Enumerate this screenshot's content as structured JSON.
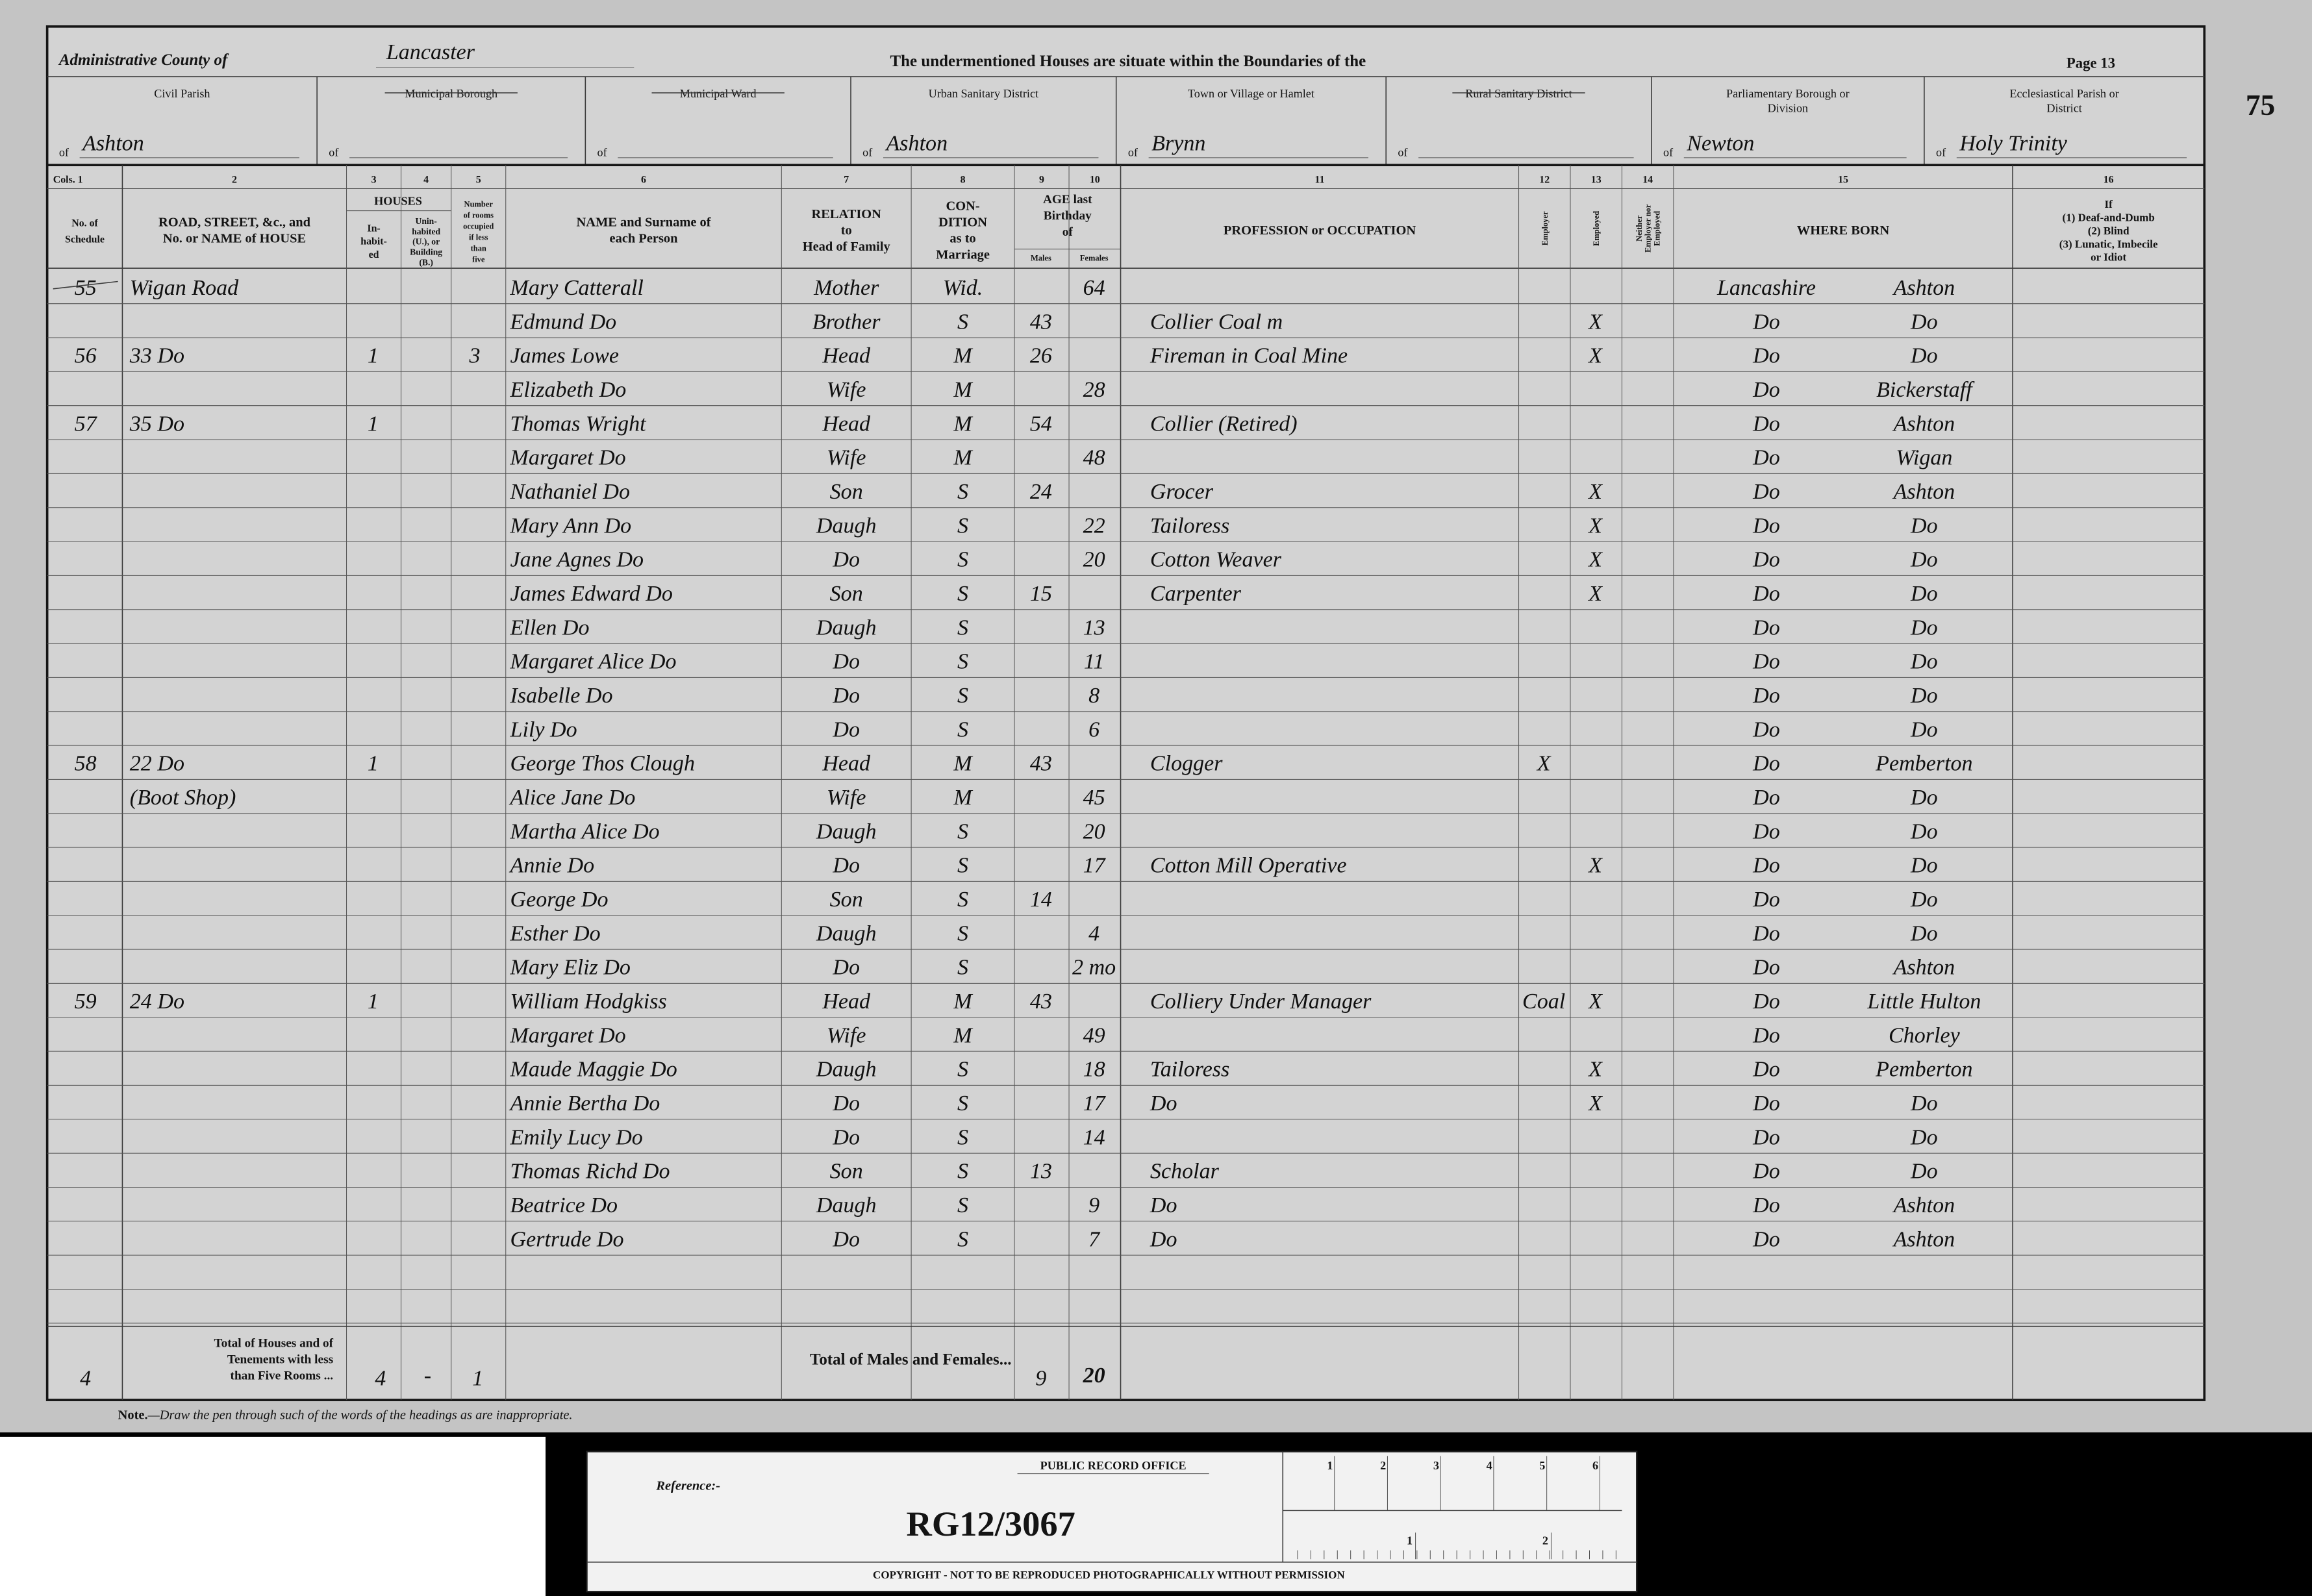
{
  "header": {
    "county_label": "Administrative County of",
    "county": "Lancaster",
    "title": "The undermentioned Houses are situate within the Boundaries of the",
    "page": "Page 13",
    "folio": "75",
    "district_prefix": "of",
    "districts": [
      {
        "label": [
          "Civil Parish"
        ],
        "value": "Ashton"
      },
      {
        "label": [
          "Municipal Borough"
        ]
      },
      {
        "label": [
          "Municipal Ward"
        ]
      },
      {
        "label": [
          "Urban Sanitary District"
        ],
        "value": "Ashton"
      },
      {
        "label": [
          "Town or Village or Hamlet"
        ],
        "value": "Brynn"
      },
      {
        "label": [
          "Rural Sanitary District"
        ]
      },
      {
        "label": [
          "Parliamentary Borough or",
          "Division"
        ],
        "value": "Newton"
      },
      {
        "label": [
          "Ecclesiastical Parish or",
          "District"
        ],
        "value": "Holy Trinity"
      }
    ]
  },
  "table": {
    "houses_heading": "HOUSES",
    "age_heading": [
      "AGE last",
      "Birthday",
      "of"
    ],
    "age_subheadings": [
      "Males",
      "Females"
    ],
    "columns": [
      {
        "number": "Cols. 1",
        "heading": [
          "No. of",
          "Schedule"
        ]
      },
      {
        "number": "2",
        "heading": [
          "ROAD, STREET, &c., and",
          "No. or NAME of HOUSE"
        ]
      },
      {
        "number": "3",
        "heading": [
          "In-",
          "habit-",
          "ed"
        ]
      },
      {
        "number": "4",
        "heading": [
          "Unin-",
          "habited",
          "(U.), or",
          "Building",
          "(B.)"
        ]
      },
      {
        "number": "5",
        "heading": [
          "Number",
          "of rooms",
          "occupied",
          "if less",
          "than",
          "five"
        ]
      },
      {
        "number": "6",
        "heading": [
          "NAME and Surname of",
          "each Person"
        ]
      },
      {
        "number": "7",
        "heading": [
          "RELATION",
          "to",
          "Head of Family"
        ]
      },
      {
        "number": "8",
        "heading": [
          "CON-",
          "DITION",
          "as to",
          "Marriage"
        ]
      },
      {
        "number": "9"
      },
      {
        "number": "10"
      },
      {
        "number": "11",
        "heading": [
          "PROFESSION or OCCUPATION"
        ]
      },
      {
        "number": "12",
        "heading": [
          "Employer"
        ]
      },
      {
        "number": "13",
        "heading": [
          "Employed"
        ]
      },
      {
        "number": "14",
        "heading": [
          "Neither",
          "Employer nor",
          "Employed"
        ]
      },
      {
        "number": "15",
        "heading": [
          "WHERE BORN"
        ]
      },
      {
        "number": "16",
        "heading": [
          "If",
          "(1) Deaf-and-Dumb",
          "(2) Blind",
          "(3) Lunatic, Imbecile",
          "or Idiot"
        ]
      }
    ],
    "rows": [
      {
        "schedule": "55",
        "road": "Wigan Road",
        "name": "Mary Catterall",
        "relation": "Mother",
        "condition": "Wid.",
        "age_female": "64",
        "born_county": "Lancashire",
        "born_parish": "Ashton"
      },
      {
        "name": "Edmund Do",
        "relation": "Brother",
        "condition": "S",
        "age_male": "43",
        "occupation": "Collier Coal m",
        "employed": "X",
        "born_county": "Do",
        "born_parish": "Do"
      },
      {
        "schedule": "56",
        "road": "33 Do",
        "inhabited": "1",
        "rooms": "3",
        "name": "James Lowe",
        "relation": "Head",
        "condition": "M",
        "age_male": "26",
        "occupation": "Fireman in Coal Mine",
        "employed": "X",
        "born_county": "Do",
        "born_parish": "Do"
      },
      {
        "name": "Elizabeth Do",
        "relation": "Wife",
        "condition": "M",
        "age_female": "28",
        "born_county": "Do",
        "born_parish": "Bickerstaff"
      },
      {
        "schedule": "57",
        "road": "35 Do",
        "inhabited": "1",
        "name": "Thomas Wright",
        "relation": "Head",
        "condition": "M",
        "age_male": "54",
        "occupation": "Collier (Retired)",
        "born_county": "Do",
        "born_parish": "Ashton"
      },
      {
        "name": "Margaret Do",
        "relation": "Wife",
        "condition": "M",
        "age_female": "48",
        "born_county": "Do",
        "born_parish": "Wigan"
      },
      {
        "name": "Nathaniel Do",
        "relation": "Son",
        "condition": "S",
        "age_male": "24",
        "occupation": "Grocer",
        "employed": "X",
        "born_county": "Do",
        "born_parish": "Ashton"
      },
      {
        "name": "Mary Ann Do",
        "relation": "Daugh",
        "condition": "S",
        "age_female": "22",
        "occupation": "Tailoress",
        "employed": "X",
        "born_county": "Do",
        "born_parish": "Do"
      },
      {
        "name": "Jane Agnes Do",
        "relation": "Do",
        "condition": "S",
        "age_female": "20",
        "occupation": "Cotton Weaver",
        "employed": "X",
        "born_county": "Do",
        "born_parish": "Do"
      },
      {
        "name": "James Edward Do",
        "relation": "Son",
        "condition": "S",
        "age_male": "15",
        "occupation": "Carpenter",
        "employed": "X",
        "born_county": "Do",
        "born_parish": "Do"
      },
      {
        "name": "Ellen Do",
        "relation": "Daugh",
        "condition": "S",
        "age_female": "13",
        "born_county": "Do",
        "born_parish": "Do"
      },
      {
        "name": "Margaret Alice Do",
        "relation": "Do",
        "condition": "S",
        "age_female": "11",
        "born_county": "Do",
        "born_parish": "Do"
      },
      {
        "name": "Isabelle Do",
        "relation": "Do",
        "condition": "S",
        "age_female": "8",
        "born_county": "Do",
        "born_parish": "Do"
      },
      {
        "name": "Lily Do",
        "relation": "Do",
        "condition": "S",
        "age_female": "6",
        "born_county": "Do",
        "born_parish": "Do"
      },
      {
        "schedule": "58",
        "road": "22 Do",
        "inhabited": "1",
        "name": "George Thos Clough",
        "relation": "Head",
        "condition": "M",
        "age_male": "43",
        "occupation": "Clogger",
        "employer": "X",
        "born_county": "Do",
        "born_parish": "Pemberton"
      },
      {
        "road": "(Boot Shop)",
        "name": "Alice Jane Do",
        "relation": "Wife",
        "condition": "M",
        "age_female": "45",
        "born_county": "Do",
        "born_parish": "Do"
      },
      {
        "name": "Martha Alice Do",
        "relation": "Daugh",
        "condition": "S",
        "age_female": "20",
        "born_county": "Do",
        "born_parish": "Do"
      },
      {
        "name": "Annie Do",
        "relation": "Do",
        "condition": "S",
        "age_female": "17",
        "occupation": "Cotton Mill Operative",
        "employed": "X",
        "born_county": "Do",
        "born_parish": "Do"
      },
      {
        "name": "George Do",
        "relation": "Son",
        "condition": "S",
        "age_male": "14",
        "born_county": "Do",
        "born_parish": "Do"
      },
      {
        "name": "Esther Do",
        "relation": "Daugh",
        "condition": "S",
        "age_female": "4",
        "born_county": "Do",
        "born_parish": "Do"
      },
      {
        "name": "Mary Eliz Do",
        "relation": "Do",
        "condition": "S",
        "age_female": "2 mo",
        "born_county": "Do",
        "born_parish": "Ashton"
      },
      {
        "schedule": "59",
        "road": "24 Do",
        "inhabited": "1",
        "name": "William Hodgkiss",
        "relation": "Head",
        "condition": "M",
        "age_male": "43",
        "occupation": "Colliery Under Manager",
        "employer": "Coal",
        "employed": "X",
        "born_county": "Do",
        "born_parish": "Little Hulton"
      },
      {
        "name": "Margaret Do",
        "relation": "Wife",
        "condition": "M",
        "age_female": "49",
        "born_county": "Do",
        "born_parish": "Chorley"
      },
      {
        "name": "Maude Maggie Do",
        "relation": "Daugh",
        "condition": "S",
        "age_female": "18",
        "occupation": "Tailoress",
        "employed": "X",
        "born_county": "Do",
        "born_parish": "Pemberton"
      },
      {
        "name": "Annie Bertha Do",
        "relation": "Do",
        "condition": "S",
        "age_female": "17",
        "occupation": "Do",
        "employed": "X",
        "born_county": "Do",
        "born_parish": "Do"
      },
      {
        "name": "Emily Lucy Do",
        "relation": "Do",
        "condition": "S",
        "age_female": "14",
        "born_county": "Do",
        "born_parish": "Do"
      },
      {
        "name": "Thomas Richd Do",
        "relation": "Son",
        "condition": "S",
        "age_male": "13",
        "occupation": "Scholar",
        "born_county": "Do",
        "born_parish": "Do"
      },
      {
        "name": "Beatrice Do",
        "relation": "Daugh",
        "condition": "S",
        "age_female": "9",
        "occupation": "Do",
        "born_county": "Do",
        "born_parish": "Ashton"
      },
      {
        "name": "Gertrude Do",
        "relation": "Do",
        "condition": "S",
        "age_female": "7",
        "occupation": "Do",
        "born_county": "Do",
        "born_parish": "Ashton"
      }
    ],
    "totals": {
      "schedules": "4",
      "houses_label": [
        "Total of Houses and of",
        "Tenements with less",
        "than Five Rooms ..."
      ],
      "inhabited": "4",
      "uninhabited": "-",
      "rooms": "1",
      "persons_label": "Total of Males and Females...",
      "males": "9",
      "females": "20"
    }
  },
  "note": {
    "lead": "Note.",
    "text": "—Draw the pen through such of the words of the headings as are inappropriate."
  },
  "reference_card": {
    "office": "PUBLIC RECORD OFFICE",
    "reference_label": "Reference:-",
    "reference": "RG12/3067",
    "copyright": "COPYRIGHT - NOT TO BE REPRODUCED PHOTOGRAPHICALLY WITHOUT PERMISSION",
    "scale_top": [
      "1",
      "2",
      "3",
      "4",
      "5",
      "6"
    ],
    "scale_bottom": [
      "1",
      "2"
    ]
  }
}
